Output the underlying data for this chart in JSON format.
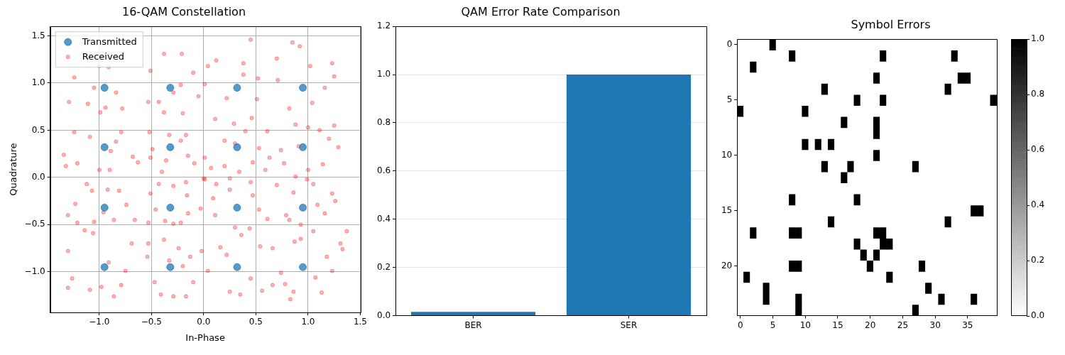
{
  "chart_data": [
    {
      "type": "scatter",
      "title": "16-QAM Constellation",
      "xlabel": "In-Phase",
      "ylabel": "Quadrature",
      "xlim": [
        -1.47,
        1.5
      ],
      "ylim": [
        -1.43,
        1.6
      ],
      "xticks": [
        {
          "value": -1,
          "label": "−1.0"
        },
        {
          "value": -0.5,
          "label": "−0.5"
        },
        {
          "value": 0,
          "label": "0.0"
        },
        {
          "value": 0.5,
          "label": "0.5"
        },
        {
          "value": 1,
          "label": "1.0"
        },
        {
          "value": 1.5,
          "label": "1.5"
        }
      ],
      "yticks": [
        {
          "value": -1,
          "label": "−1.0"
        },
        {
          "value": -0.5,
          "label": "−0.5"
        },
        {
          "value": 0,
          "label": "0.0"
        },
        {
          "value": 0.5,
          "label": "0.5"
        },
        {
          "value": 1,
          "label": "1.0"
        },
        {
          "value": 1.5,
          "label": "1.5"
        }
      ],
      "grid": true,
      "legend": "top left",
      "marker": "circle",
      "series": [
        {
          "name": "Transmitted",
          "color": "#1f77b4",
          "x": [
            -0.95,
            -0.95,
            -0.95,
            -0.95,
            -0.32,
            -0.32,
            -0.32,
            -0.32,
            0.32,
            0.32,
            0.32,
            0.32,
            0.95,
            0.95,
            0.95,
            0.95
          ],
          "values": [
            0.95,
            0.32,
            -0.32,
            -0.95,
            0.95,
            0.32,
            -0.32,
            -0.95,
            0.95,
            0.32,
            -0.32,
            -0.95,
            0.95,
            0.32,
            -0.32,
            -0.95
          ]
        },
        {
          "name": "Received",
          "color": "#ff0000",
          "x": [
            -1.24,
            -1.29,
            -1.11,
            -1.0,
            -0.91,
            -0.84,
            -0.78,
            -0.99,
            -0.94,
            -1.05,
            -0.38,
            -0.21,
            -0.51,
            -0.1,
            -0.53,
            -0.38,
            -0.2,
            -0.05,
            -0.29,
            -0.43,
            -0.22,
            -1.34,
            -1.32,
            -1.24,
            -1.21,
            -1.09,
            -1.0,
            -0.9,
            -0.79,
            -0.68,
            -0.63,
            -0.89,
            -0.84,
            -0.52,
            -0.49,
            -0.51,
            -0.4,
            -0.33,
            -0.17,
            -0.09,
            -0.15,
            -0.22,
            -0.36,
            0.0,
            -1.3,
            -1.23,
            -1.21,
            -1.12,
            -1.07,
            -0.92,
            -0.81,
            -0.74,
            -0.66,
            -0.86,
            -1.05,
            -0.96,
            -0.53,
            -0.51,
            -0.43,
            -0.29,
            -0.17,
            -0.16,
            -0.15,
            -0.22,
            -0.29,
            -0.37,
            -0.46,
            -0.03,
            -1.3,
            -1.3,
            -1.26,
            -1.14,
            -1.09,
            -0.98,
            -0.86,
            -0.79,
            -0.69,
            -0.75,
            -0.91,
            -1.06,
            -0.53,
            -0.54,
            -0.47,
            -0.41,
            -0.29,
            -0.17,
            -0.1,
            -0.13,
            -0.24,
            -0.38,
            -0.33,
            -0.2,
            0.45,
            0.12,
            0.04,
            0.38,
            0.01,
            0.52,
            0.51,
            0.46,
            0.11,
            0.22,
            0.29,
            0.38,
            0.85,
            0.92,
            1.23,
            1.25,
            0.7,
            0.71,
            1.16,
            1.25,
            1.04,
            0.82,
            0.88,
            1.02,
            0.2,
            0.4,
            0.53,
            0.47,
            0.34,
            0.2,
            0.07,
            0.01,
            0.25,
            0.59,
            0.61,
            0.3,
            0.74,
            0.77,
            0.88,
            1.0,
            1.14,
            1.29,
            1.2,
            1.11,
            1.0,
            0.91,
            0.63,
            0.12,
            0.25,
            0.09,
            0.11,
            0.3,
            0.44,
            0.47,
            0.53,
            0.61,
            0.7,
            0.45,
            0.01,
            0.86,
            0.99,
            1.05,
            1.23,
            1.26,
            1.16,
            1.05,
            0.93,
            0.82,
            0.79,
            1.37,
            1.09,
            -0.02,
            0.04,
            0.25,
            0.35,
            0.56,
            0.66,
            0.66,
            0.54,
            0.36,
            0.16,
            0.22,
            0.45,
            0.83,
            0.86,
            1.13,
            1.33,
            1.31,
            1.18,
            1.23,
            1.07,
            0.93,
            0.87,
            0.74,
            0.78
          ],
          "values": [
            1.06,
            0.8,
            0.78,
            1.18,
            1.17,
            0.9,
            0.73,
            0.69,
            0.74,
            0.95,
            1.31,
            1.31,
            1.13,
            1.11,
            0.8,
            0.69,
            0.68,
            0.86,
            0.9,
            0.8,
            0.98,
            0.24,
            0.12,
            0.48,
            0.15,
            0.43,
            0.08,
            0.08,
            0.48,
            0.22,
            0.16,
            0.28,
            0.38,
            0.48,
            0.3,
            0.21,
            0.06,
            0.45,
            0.45,
            0.15,
            0.23,
            0.39,
            0.18,
            -0.01,
            -0.4,
            -0.28,
            -0.48,
            -0.07,
            -0.14,
            -0.13,
            -0.14,
            -0.29,
            -0.45,
            -0.45,
            -0.47,
            -0.37,
            -0.48,
            -0.17,
            -0.07,
            -0.09,
            -0.05,
            -0.19,
            -0.38,
            -0.48,
            -0.49,
            -0.46,
            -0.34,
            -0.33,
            -0.78,
            -1.17,
            -1.07,
            -0.56,
            -1.19,
            -1.16,
            -1.26,
            -1.14,
            -0.7,
            -0.99,
            -0.9,
            -0.59,
            -0.7,
            -0.84,
            -1.11,
            -1.24,
            -1.26,
            -1.26,
            -1.11,
            -0.84,
            -0.75,
            -0.66,
            -0.88,
            -0.94,
            1.46,
            1.24,
            1.18,
            1.21,
            0.99,
            1.05,
            0.83,
            0.63,
            0.62,
            0.84,
            0.57,
            1.09,
            1.43,
            1.39,
            1.21,
            1.07,
            1.26,
            1.03,
            0.95,
            0.55,
            0.79,
            0.73,
            0.56,
            1.18,
            0.39,
            0.49,
            0.31,
            0.16,
            0.06,
            0.12,
            0.1,
            0.21,
            -0.01,
            0.08,
            0.49,
            0.36,
            0.29,
            0.15,
            0.01,
            0.08,
            0.14,
            0.32,
            0.41,
            0.5,
            0.53,
            0.33,
            0.21,
            -0.07,
            -0.13,
            -0.22,
            -0.4,
            -0.53,
            -0.54,
            -0.19,
            -0.34,
            -0.44,
            -0.08,
            -0.05,
            -0.02,
            -0.16,
            -0.02,
            -0.07,
            -0.17,
            -0.25,
            -0.38,
            -0.57,
            -0.5,
            -0.45,
            -0.4,
            -0.57,
            -0.29,
            -0.78,
            -0.99,
            -1.21,
            -1.24,
            -1.2,
            -1.14,
            -0.75,
            -0.73,
            -0.61,
            -0.74,
            -0.82,
            -1.07,
            -1.29,
            -1.21,
            -1.22,
            -0.76,
            -0.7,
            -0.84,
            -0.99,
            -1.06,
            -0.65,
            -0.68,
            -1.01,
            -1.13
          ]
        }
      ]
    },
    {
      "type": "bar",
      "title": "QAM Error Rate Comparison",
      "categories": [
        "BER",
        "SER"
      ],
      "values": [
        0.016,
        1.0
      ],
      "color": "#1f77b4",
      "ylim": [
        0,
        1.2
      ],
      "yticks": [
        {
          "value": 0,
          "label": "0.0"
        },
        {
          "value": 0.2,
          "label": "0.2"
        },
        {
          "value": 0.4,
          "label": "0.4"
        },
        {
          "value": 0.6,
          "label": "0.6"
        },
        {
          "value": 0.8,
          "label": "0.8"
        },
        {
          "value": 1,
          "label": "1.0"
        },
        {
          "value": 1.2,
          "label": "1.2"
        }
      ],
      "grid": "y"
    },
    {
      "type": "heatmap",
      "title": "Symbol Errors",
      "categories": [
        "0",
        null,
        null,
        null,
        null,
        "5",
        null,
        null,
        null,
        null,
        "10",
        null,
        null,
        null,
        null,
        "15",
        null,
        null,
        null,
        null,
        "20",
        null,
        null,
        null,
        null,
        "25",
        null,
        null,
        null,
        null,
        "30",
        null,
        null,
        null,
        null,
        "35",
        null,
        null,
        null,
        null
      ],
      "y_categories": [
        "0",
        null,
        null,
        null,
        null,
        "5",
        null,
        null,
        null,
        null,
        "10",
        null,
        null,
        null,
        null,
        "15",
        null,
        null,
        null,
        null,
        "20",
        null,
        null,
        null,
        null
      ],
      "clim": [
        0,
        1
      ],
      "cticks": [
        {
          "value": 0,
          "label": "0.0"
        },
        {
          "value": 0.2,
          "label": "0.2"
        },
        {
          "value": 0.4,
          "label": "0.4"
        },
        {
          "value": 0.6,
          "label": "0.6"
        },
        {
          "value": 0.8,
          "label": "0.8"
        },
        {
          "value": 1,
          "label": "1.0"
        }
      ],
      "cells": [
        [
          0,
          0,
          0,
          0,
          0,
          1,
          0,
          0,
          0,
          0,
          0,
          0,
          0,
          0,
          0,
          0,
          0,
          0,
          0,
          0,
          0,
          0,
          0,
          0,
          0,
          0,
          0,
          0,
          0,
          0,
          0,
          0,
          0,
          0,
          0,
          0,
          0,
          0,
          0,
          0
        ],
        [
          0,
          0,
          0,
          0,
          0,
          0,
          0,
          0,
          1,
          0,
          0,
          0,
          0,
          0,
          0,
          0,
          0,
          0,
          0,
          0,
          0,
          0,
          1,
          0,
          0,
          0,
          0,
          0,
          0,
          0,
          0,
          0,
          0,
          1,
          0,
          0,
          0,
          0,
          0,
          0
        ],
        [
          0,
          0,
          1,
          0,
          0,
          0,
          0,
          0,
          0,
          0,
          0,
          0,
          0,
          0,
          0,
          0,
          0,
          0,
          0,
          0,
          0,
          0,
          0,
          0,
          0,
          0,
          0,
          0,
          0,
          0,
          0,
          0,
          0,
          0,
          0,
          0,
          0,
          0,
          0,
          0
        ],
        [
          0,
          0,
          0,
          0,
          0,
          0,
          0,
          0,
          0,
          0,
          0,
          0,
          0,
          0,
          0,
          0,
          0,
          0,
          0,
          0,
          0,
          1,
          0,
          0,
          0,
          0,
          0,
          0,
          0,
          0,
          0,
          0,
          0,
          0,
          1,
          1,
          0,
          0,
          0,
          0
        ],
        [
          0,
          0,
          0,
          0,
          0,
          0,
          0,
          0,
          0,
          0,
          0,
          0,
          0,
          1,
          0,
          0,
          0,
          0,
          0,
          0,
          0,
          0,
          0,
          0,
          0,
          0,
          0,
          0,
          0,
          0,
          0,
          0,
          1,
          0,
          0,
          0,
          0,
          0,
          0,
          0
        ],
        [
          0,
          0,
          0,
          0,
          0,
          0,
          0,
          0,
          0,
          0,
          0,
          0,
          0,
          0,
          0,
          0,
          0,
          0,
          1,
          0,
          0,
          0,
          1,
          0,
          0,
          0,
          0,
          0,
          0,
          0,
          0,
          0,
          0,
          0,
          0,
          0,
          0,
          0,
          0,
          1
        ],
        [
          1,
          0,
          0,
          0,
          0,
          0,
          0,
          0,
          0,
          0,
          1,
          0,
          0,
          0,
          0,
          0,
          0,
          0,
          0,
          0,
          0,
          0,
          0,
          0,
          0,
          0,
          0,
          0,
          0,
          0,
          0,
          0,
          0,
          0,
          0,
          0,
          0,
          0,
          0,
          0
        ],
        [
          0,
          0,
          0,
          0,
          0,
          0,
          0,
          0,
          0,
          0,
          0,
          0,
          0,
          0,
          0,
          0,
          1,
          0,
          0,
          0,
          0,
          1,
          0,
          0,
          0,
          0,
          0,
          0,
          0,
          0,
          0,
          0,
          0,
          0,
          0,
          0,
          0,
          0,
          0,
          0
        ],
        [
          0,
          0,
          0,
          0,
          0,
          0,
          0,
          0,
          0,
          0,
          0,
          0,
          0,
          0,
          0,
          0,
          0,
          0,
          0,
          0,
          0,
          1,
          0,
          0,
          0,
          0,
          0,
          0,
          0,
          0,
          0,
          0,
          0,
          0,
          0,
          0,
          0,
          0,
          0,
          0
        ],
        [
          0,
          0,
          0,
          0,
          0,
          0,
          0,
          0,
          0,
          0,
          1,
          0,
          1,
          0,
          1,
          0,
          0,
          0,
          0,
          0,
          0,
          0,
          0,
          0,
          0,
          0,
          0,
          0,
          0,
          0,
          0,
          0,
          0,
          0,
          0,
          0,
          0,
          0,
          0,
          0
        ],
        [
          0,
          0,
          0,
          0,
          0,
          0,
          0,
          0,
          0,
          0,
          0,
          0,
          0,
          0,
          0,
          0,
          0,
          0,
          0,
          0,
          0,
          1,
          0,
          0,
          0,
          0,
          0,
          0,
          0,
          0,
          0,
          0,
          0,
          0,
          0,
          0,
          0,
          0,
          0,
          0
        ],
        [
          0,
          0,
          0,
          0,
          0,
          0,
          0,
          0,
          0,
          0,
          0,
          0,
          0,
          1,
          0,
          0,
          0,
          1,
          0,
          0,
          0,
          0,
          0,
          0,
          0,
          0,
          0,
          1,
          0,
          0,
          0,
          0,
          0,
          0,
          0,
          0,
          0,
          0,
          0,
          0
        ],
        [
          0,
          0,
          0,
          0,
          0,
          0,
          0,
          0,
          0,
          0,
          0,
          0,
          0,
          0,
          0,
          0,
          1,
          0,
          0,
          0,
          0,
          0,
          0,
          0,
          0,
          0,
          0,
          0,
          0,
          0,
          0,
          0,
          0,
          0,
          0,
          0,
          0,
          0,
          0,
          0
        ],
        [
          0,
          0,
          0,
          0,
          0,
          0,
          0,
          0,
          0,
          0,
          0,
          0,
          0,
          0,
          0,
          0,
          0,
          0,
          0,
          0,
          0,
          0,
          0,
          0,
          0,
          0,
          0,
          0,
          0,
          0,
          0,
          0,
          0,
          0,
          0,
          0,
          0,
          0,
          0,
          0
        ],
        [
          0,
          0,
          0,
          0,
          0,
          0,
          0,
          0,
          1,
          0,
          0,
          0,
          0,
          0,
          0,
          0,
          0,
          0,
          1,
          0,
          0,
          0,
          0,
          0,
          0,
          0,
          0,
          0,
          0,
          0,
          0,
          0,
          0,
          0,
          0,
          0,
          0,
          0,
          0,
          0
        ],
        [
          0,
          0,
          0,
          0,
          0,
          0,
          0,
          0,
          0,
          0,
          0,
          0,
          0,
          0,
          0,
          0,
          0,
          0,
          0,
          0,
          0,
          0,
          0,
          0,
          0,
          0,
          0,
          0,
          0,
          0,
          0,
          0,
          0,
          0,
          0,
          0,
          1,
          1,
          0,
          0
        ],
        [
          0,
          0,
          0,
          0,
          0,
          0,
          0,
          0,
          0,
          0,
          0,
          0,
          0,
          0,
          1,
          0,
          0,
          0,
          0,
          0,
          0,
          0,
          0,
          0,
          0,
          0,
          0,
          0,
          0,
          0,
          0,
          0,
          1,
          0,
          0,
          0,
          0,
          0,
          0,
          0
        ],
        [
          0,
          0,
          1,
          0,
          0,
          0,
          0,
          0,
          1,
          1,
          0,
          0,
          0,
          0,
          0,
          0,
          0,
          0,
          0,
          0,
          0,
          1,
          1,
          0,
          0,
          0,
          0,
          0,
          0,
          0,
          0,
          0,
          0,
          0,
          0,
          0,
          0,
          0,
          0,
          0
        ],
        [
          0,
          0,
          0,
          0,
          0,
          0,
          0,
          0,
          0,
          0,
          0,
          0,
          0,
          0,
          0,
          0,
          0,
          0,
          1,
          0,
          0,
          0,
          1,
          1,
          0,
          0,
          0,
          0,
          0,
          0,
          0,
          0,
          0,
          0,
          0,
          0,
          0,
          0,
          0,
          0
        ],
        [
          0,
          0,
          0,
          0,
          0,
          0,
          0,
          0,
          0,
          0,
          0,
          0,
          0,
          0,
          0,
          0,
          0,
          0,
          0,
          1,
          0,
          1,
          0,
          0,
          0,
          0,
          0,
          0,
          0,
          0,
          0,
          0,
          0,
          0,
          0,
          0,
          0,
          0,
          0,
          0
        ],
        [
          0,
          0,
          0,
          0,
          0,
          0,
          0,
          0,
          1,
          1,
          0,
          0,
          0,
          0,
          0,
          0,
          0,
          0,
          0,
          0,
          1,
          0,
          0,
          0,
          0,
          0,
          0,
          0,
          1,
          0,
          0,
          0,
          0,
          0,
          0,
          0,
          0,
          0,
          0,
          0
        ],
        [
          0,
          1,
          0,
          0,
          0,
          0,
          0,
          0,
          0,
          0,
          0,
          0,
          0,
          0,
          0,
          0,
          0,
          0,
          0,
          0,
          0,
          0,
          0,
          1,
          0,
          0,
          0,
          0,
          0,
          0,
          0,
          0,
          0,
          0,
          0,
          0,
          0,
          0,
          0,
          0
        ],
        [
          0,
          0,
          0,
          0,
          1,
          0,
          0,
          0,
          0,
          0,
          0,
          0,
          0,
          0,
          0,
          0,
          0,
          0,
          0,
          0,
          0,
          0,
          0,
          0,
          0,
          0,
          0,
          0,
          0,
          1,
          0,
          0,
          0,
          0,
          0,
          0,
          0,
          0,
          0,
          0
        ],
        [
          0,
          0,
          0,
          0,
          1,
          0,
          0,
          0,
          0,
          1,
          0,
          0,
          0,
          0,
          0,
          0,
          0,
          0,
          0,
          0,
          0,
          0,
          0,
          0,
          0,
          0,
          0,
          0,
          0,
          0,
          0,
          1,
          0,
          0,
          0,
          0,
          1,
          0,
          0,
          0
        ],
        [
          0,
          0,
          0,
          0,
          0,
          0,
          0,
          0,
          0,
          1,
          0,
          0,
          0,
          0,
          0,
          0,
          0,
          0,
          0,
          0,
          0,
          0,
          0,
          0,
          0,
          0,
          0,
          1,
          0,
          0,
          0,
          0,
          0,
          0,
          0,
          0,
          0,
          0,
          0,
          0
        ]
      ]
    }
  ]
}
